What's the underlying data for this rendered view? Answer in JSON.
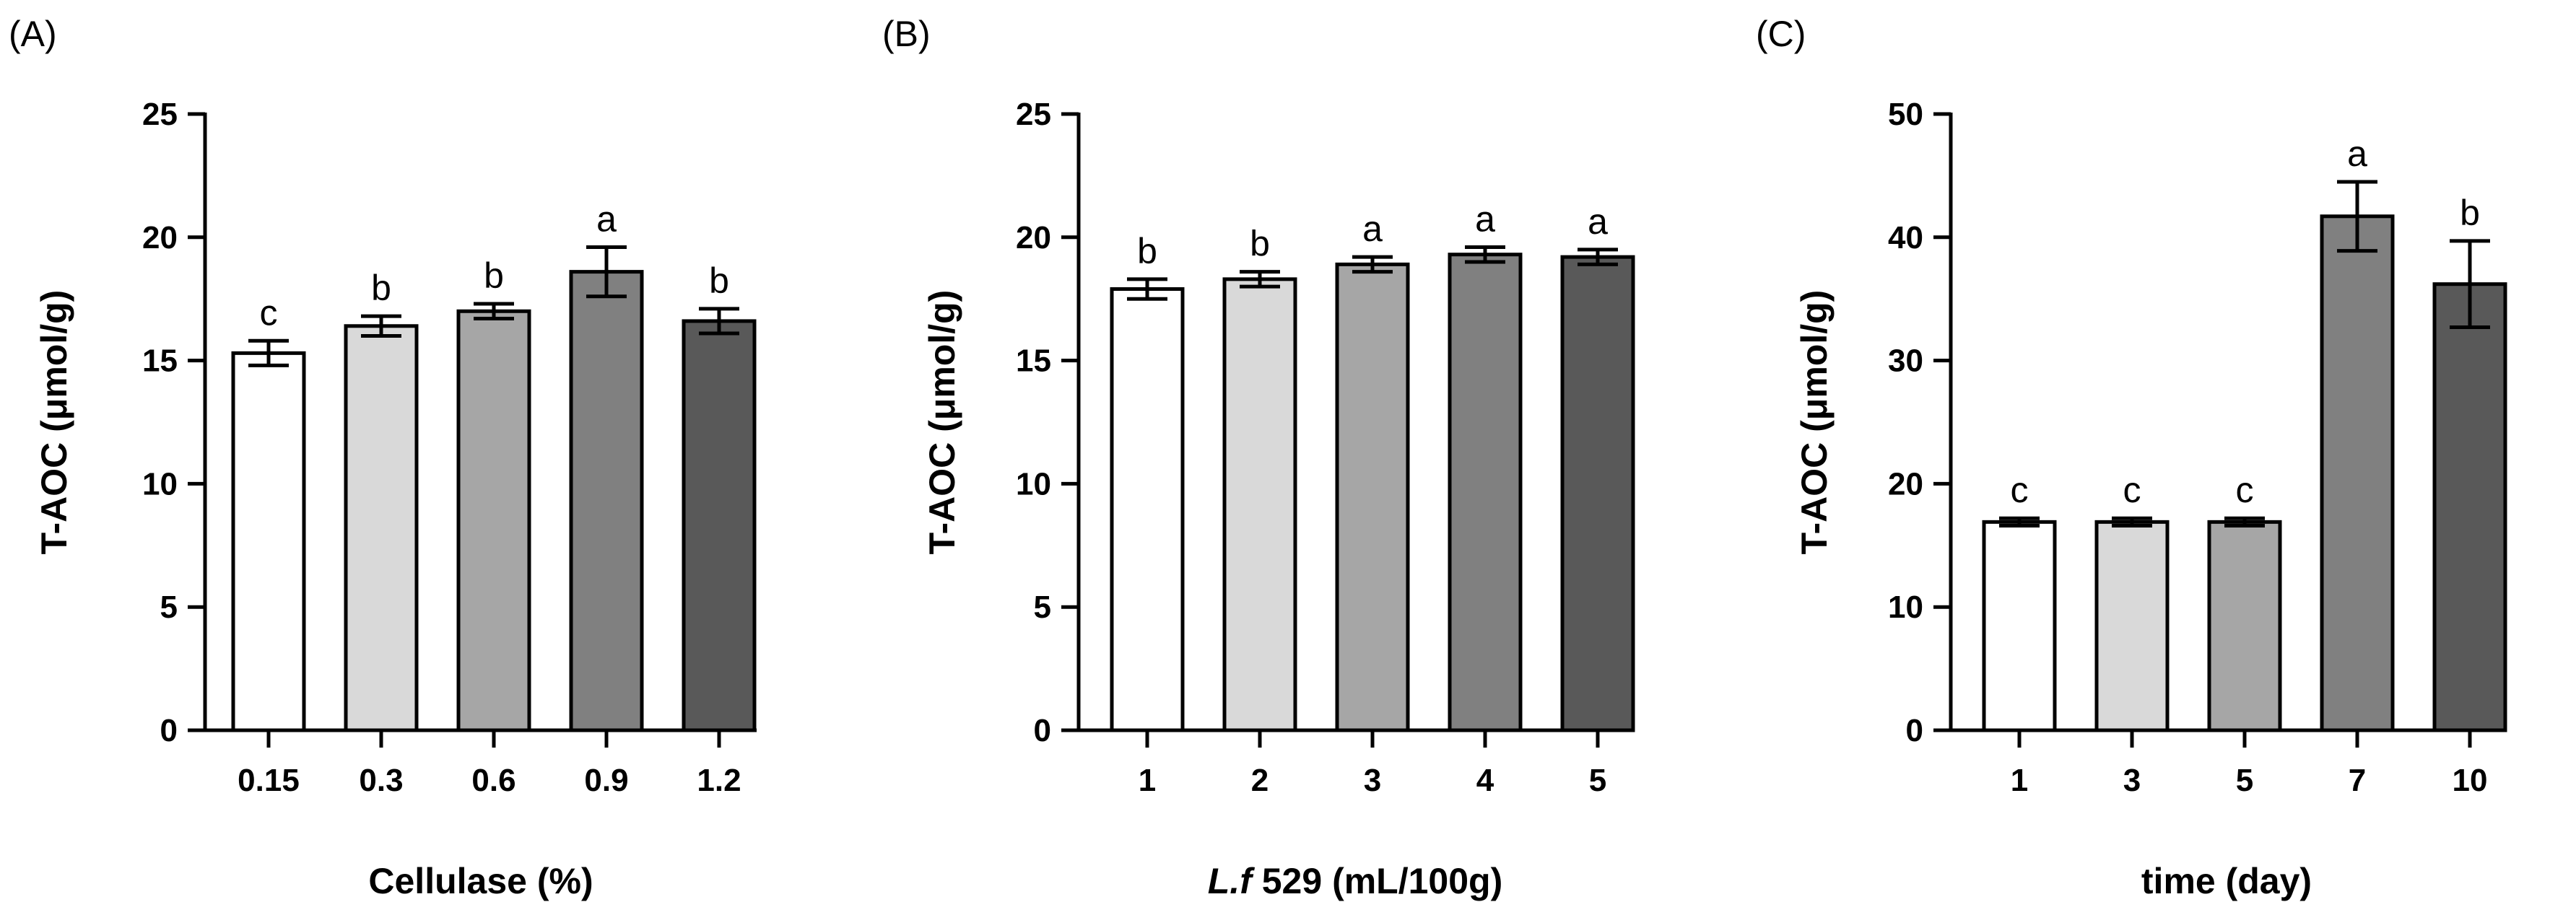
{
  "chart_data": [
    {
      "type": "bar",
      "panel_label": "(A)",
      "ylabel": "T-AOC (μmol/g)",
      "xlabel_parts": [
        {
          "text": "Cellulase (%)",
          "italic": false
        }
      ],
      "categories": [
        "0.15",
        "0.3",
        "0.6",
        "0.9",
        "1.2"
      ],
      "values": [
        15.3,
        16.4,
        17.0,
        18.6,
        16.6
      ],
      "errors": [
        0.5,
        0.4,
        0.3,
        1.0,
        0.5
      ],
      "significance": [
        "c",
        "b",
        "b",
        "a",
        "b"
      ],
      "ylim": [
        0,
        25
      ],
      "yticks": [
        "0",
        "5",
        "10",
        "15",
        "20",
        "25"
      ],
      "bar_colors": [
        "#ffffff",
        "#d9d9d9",
        "#a6a6a6",
        "#808080",
        "#595959"
      ],
      "grid": false
    },
    {
      "type": "bar",
      "panel_label": "(B)",
      "ylabel": "T-AOC (μmol/g)",
      "xlabel_parts": [
        {
          "text": "L.f",
          "italic": true
        },
        {
          "text": " 529 (mL/100g)",
          "italic": false
        }
      ],
      "categories": [
        "1",
        "2",
        "3",
        "4",
        "5"
      ],
      "values": [
        17.9,
        18.3,
        18.9,
        19.3,
        19.2
      ],
      "errors": [
        0.4,
        0.3,
        0.3,
        0.3,
        0.3
      ],
      "significance": [
        "b",
        "b",
        "a",
        "a",
        "a"
      ],
      "ylim": [
        0,
        25
      ],
      "yticks": [
        "0",
        "5",
        "10",
        "15",
        "20",
        "25"
      ],
      "bar_colors": [
        "#ffffff",
        "#d9d9d9",
        "#a6a6a6",
        "#808080",
        "#595959"
      ],
      "grid": false
    },
    {
      "type": "bar",
      "panel_label": "(C)",
      "ylabel": "T-AOC (μmol/g)",
      "xlabel_parts": [
        {
          "text": "time (day)",
          "italic": false
        }
      ],
      "categories": [
        "1",
        "3",
        "5",
        "7",
        "10"
      ],
      "values": [
        16.9,
        16.9,
        16.9,
        41.7,
        36.2
      ],
      "errors": [
        0.3,
        0.3,
        0.3,
        2.8,
        3.5
      ],
      "significance": [
        "c",
        "c",
        "c",
        "a",
        "b"
      ],
      "ylim": [
        0,
        50
      ],
      "yticks": [
        "0",
        "10",
        "20",
        "30",
        "40",
        "50"
      ],
      "bar_colors": [
        "#ffffff",
        "#d9d9d9",
        "#a6a6a6",
        "#808080",
        "#595959"
      ],
      "grid": false
    }
  ]
}
